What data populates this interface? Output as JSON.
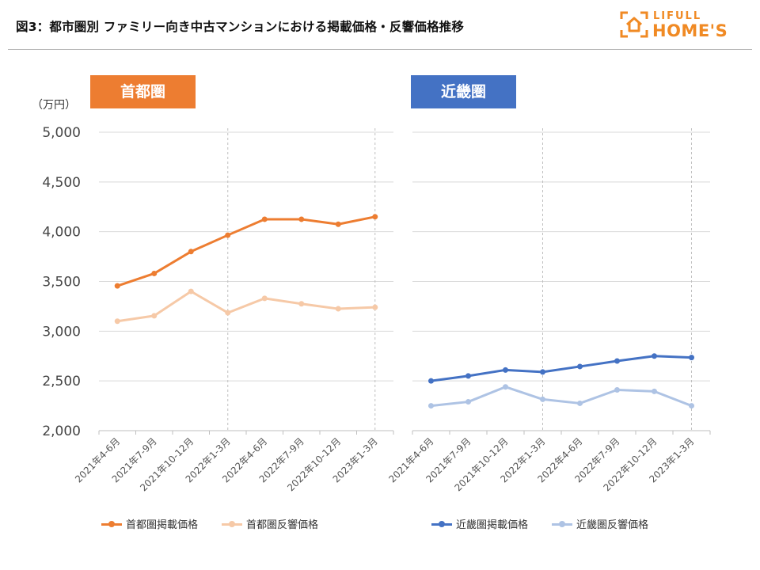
{
  "title": "図3：都市圏別 ファミリー向き中古マンションにおける掲載価格・反響価格推移",
  "logo": {
    "small": "LIFULL",
    "big": "HOME'S",
    "icon": "house-icon"
  },
  "unit_label": "（万円）",
  "chart_data": {
    "type": "line",
    "y_unit": "万円",
    "ylim": [
      2000,
      5000
    ],
    "yticks": [
      "5,000",
      "4,500",
      "4,000",
      "3,500",
      "3,000",
      "2,500",
      "2,000"
    ],
    "categories": [
      "2021年4-6月",
      "2021年7-9月",
      "2021年10-12月",
      "2022年1-3月",
      "2022年4-6月",
      "2022年7-9月",
      "2022年10-12月",
      "2023年1-3月"
    ],
    "panels": [
      {
        "region": "首都圏",
        "color": "#ed7d31",
        "series": [
          {
            "name": "首都圏掲載価格",
            "color": "#ed7d31",
            "values": [
              3455,
              3580,
              3800,
              3965,
              4125,
              4125,
              4075,
              4150
            ]
          },
          {
            "name": "首都圏反響価格",
            "color": "#f6c9a7",
            "values": [
              3100,
              3155,
              3400,
              3185,
              3330,
              3275,
              3225,
              3240
            ]
          }
        ]
      },
      {
        "region": "近畿圏",
        "color": "#4472c4",
        "series": [
          {
            "name": "近畿圏掲載価格",
            "color": "#4472c4",
            "values": [
              2500,
              2550,
              2610,
              2590,
              2645,
              2700,
              2750,
              2735
            ]
          },
          {
            "name": "近畿圏反響価格",
            "color": "#aec3e4",
            "values": [
              2250,
              2290,
              2440,
              2315,
              2275,
              2410,
              2395,
              2250
            ]
          }
        ]
      }
    ]
  }
}
